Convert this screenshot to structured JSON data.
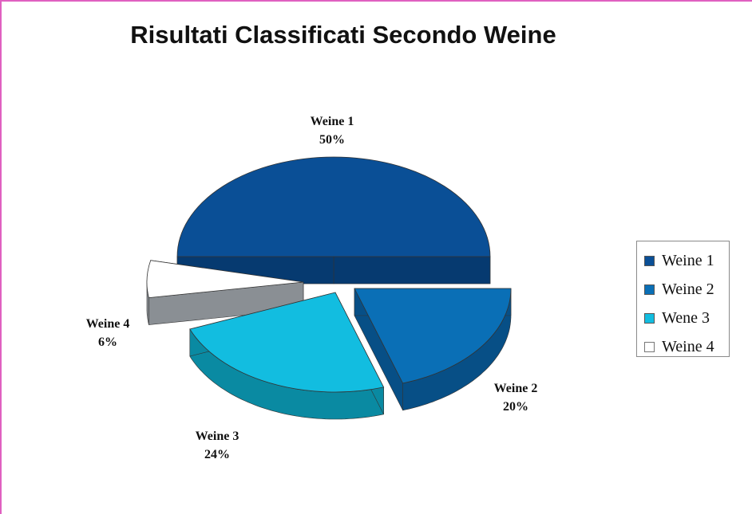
{
  "chart_data": {
    "type": "pie",
    "title": "Risultati Classificati Secondo Weine",
    "slices": [
      {
        "name": "Weine 1",
        "value": 50,
        "label": "50%",
        "color": "#0a4f96",
        "side_color": "#063a70"
      },
      {
        "name": "Weine 2",
        "value": 20,
        "label": "20%",
        "color": "#0a6fb6",
        "side_color": "#074f86"
      },
      {
        "name": "Weine 3",
        "value": 24,
        "label": "24%",
        "color": "#12bde0",
        "side_color": "#0a8aa2"
      },
      {
        "name": "Weine 4",
        "value": 6,
        "label": "6%",
        "color": "#ffffff",
        "side_color": "#8a8f94"
      }
    ],
    "legend": {
      "position": "right",
      "entries": [
        "Weine 1",
        "Weine 2",
        "Wene 3",
        "Weine 4"
      ]
    },
    "style": "3d-exploded"
  }
}
